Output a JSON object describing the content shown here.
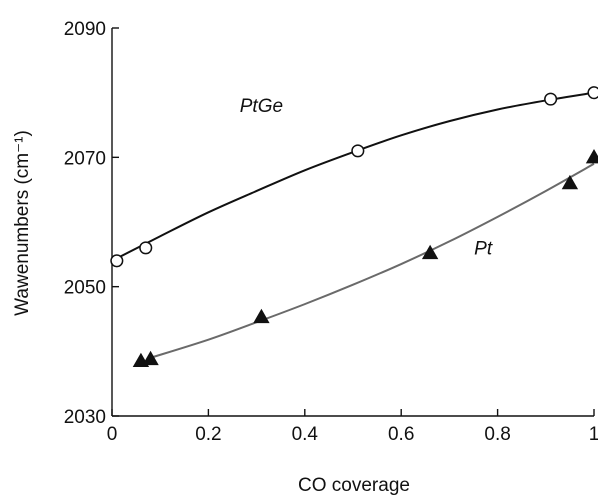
{
  "chart_data": {
    "type": "scatter",
    "title": "",
    "xlabel": "CO coverage",
    "ylabel": "Wawenumbers (cm⁻¹)",
    "xlim": [
      0,
      1
    ],
    "ylim": [
      2030,
      2090
    ],
    "x_ticks": [
      0,
      0.2,
      0.4,
      0.6,
      0.8,
      1
    ],
    "x_tick_labels": [
      "0",
      "0.2",
      "0.4",
      "0.6",
      "0.8",
      "1"
    ],
    "y_ticks": [
      2030,
      2050,
      2070,
      2090
    ],
    "y_tick_labels": [
      "2030",
      "2050",
      "2070",
      "2090"
    ],
    "grid": false,
    "series": [
      {
        "name": "PtGe",
        "marker": "open-circle",
        "color": "#111111",
        "points": [
          {
            "x": 0.01,
            "y": 2054.0
          },
          {
            "x": 0.07,
            "y": 2056.0
          },
          {
            "x": 0.51,
            "y": 2071.0
          },
          {
            "x": 0.91,
            "y": 2079.0
          },
          {
            "x": 1.0,
            "y": 2080.0
          }
        ],
        "curve": [
          {
            "x": 0.0,
            "y": 2054.0
          },
          {
            "x": 0.1,
            "y": 2057.8
          },
          {
            "x": 0.2,
            "y": 2061.5
          },
          {
            "x": 0.3,
            "y": 2064.8
          },
          {
            "x": 0.4,
            "y": 2068.0
          },
          {
            "x": 0.5,
            "y": 2070.8
          },
          {
            "x": 0.6,
            "y": 2073.4
          },
          {
            "x": 0.7,
            "y": 2075.6
          },
          {
            "x": 0.8,
            "y": 2077.4
          },
          {
            "x": 0.9,
            "y": 2078.8
          },
          {
            "x": 1.0,
            "y": 2080.0
          }
        ]
      },
      {
        "name": "Pt",
        "marker": "filled-triangle",
        "color": "#111111",
        "points": [
          {
            "x": 0.06,
            "y": 2038.5
          },
          {
            "x": 0.08,
            "y": 2038.8
          },
          {
            "x": 0.31,
            "y": 2045.3
          },
          {
            "x": 0.66,
            "y": 2055.2
          },
          {
            "x": 0.95,
            "y": 2066.0
          },
          {
            "x": 1.0,
            "y": 2070.0
          }
        ],
        "curve": [
          {
            "x": 0.08,
            "y": 2039.0
          },
          {
            "x": 0.2,
            "y": 2041.8
          },
          {
            "x": 0.3,
            "y": 2044.5
          },
          {
            "x": 0.4,
            "y": 2047.3
          },
          {
            "x": 0.5,
            "y": 2050.3
          },
          {
            "x": 0.6,
            "y": 2053.5
          },
          {
            "x": 0.7,
            "y": 2057.0
          },
          {
            "x": 0.8,
            "y": 2060.8
          },
          {
            "x": 0.9,
            "y": 2064.8
          },
          {
            "x": 1.0,
            "y": 2069.0
          }
        ]
      }
    ],
    "annotations": [
      {
        "text": "PtGe",
        "x": 0.31,
        "y": 2077.0
      },
      {
        "text": "Pt",
        "x": 0.77,
        "y": 2055.0
      }
    ],
    "colors": {
      "axis": "#111111",
      "ptge_line": "#111111",
      "pt_line": "#6a6a6a",
      "marker": "#111111"
    }
  }
}
